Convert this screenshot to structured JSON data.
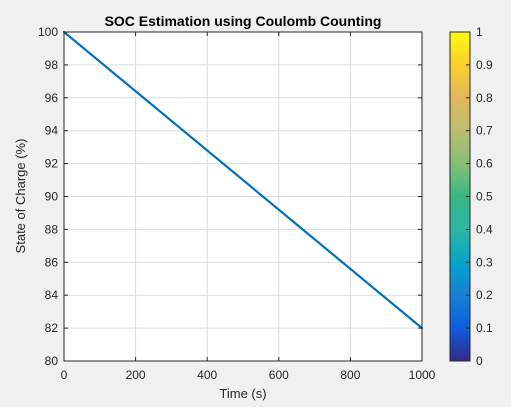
{
  "colors": {
    "figure_background": "#f0f0f0",
    "axes_background": "#ffffff",
    "line": "#0072bd",
    "grid": "#dcdcdc",
    "axis": "#262626"
  },
  "chart_data": {
    "type": "line",
    "title": "SOC Estimation using Coulomb Counting",
    "xlabel": "Time (s)",
    "ylabel": "State of Charge (%)",
    "xlim": [
      0,
      1000
    ],
    "ylim": [
      80,
      100
    ],
    "xticks": [
      0,
      200,
      400,
      600,
      800,
      1000
    ],
    "yticks": [
      80,
      82,
      84,
      86,
      88,
      90,
      92,
      94,
      96,
      98,
      100
    ],
    "grid": true,
    "series": [
      {
        "x": [
          0,
          1000
        ],
        "y": [
          100,
          82
        ]
      }
    ],
    "colorbar": {
      "colormap": "parula",
      "ticks": [
        "0",
        "0.1",
        "0.2",
        "0.3",
        "0.4",
        "0.5",
        "0.6",
        "0.7",
        "0.8",
        "0.9",
        "1"
      ]
    }
  }
}
